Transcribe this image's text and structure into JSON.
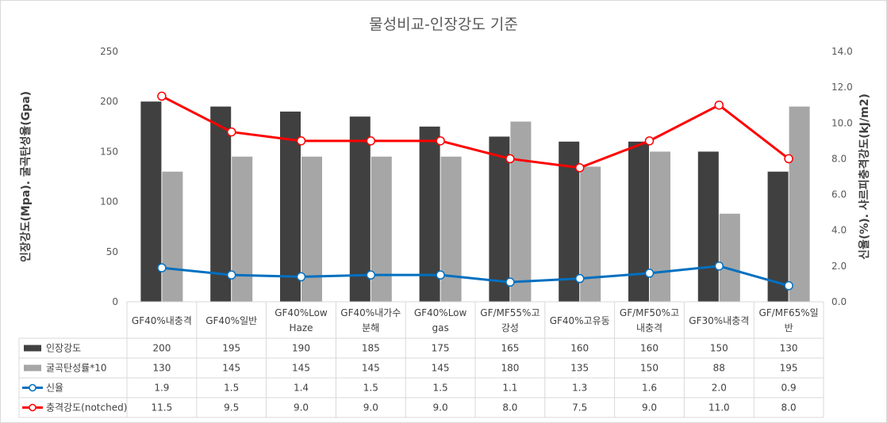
{
  "chart_data": {
    "type": "bar",
    "title": "물성비교-인장강도 기준",
    "ylabel_left": "인장강도(Mpa). 굴곡탄성율(Gpa)",
    "ylabel_right": "신율(%). 샤르피충격강도(kJ/m2)",
    "ylim_left": [
      0,
      250
    ],
    "yticks_left": [
      "0",
      "50",
      "100",
      "150",
      "200",
      "250"
    ],
    "ylim_right": [
      0,
      14
    ],
    "yticks_right": [
      "0.0",
      "2.0",
      "4.0",
      "6.0",
      "8.0",
      "10.0",
      "12.0",
      "14.0"
    ],
    "categories": [
      [
        "GF40%내충격"
      ],
      [
        "GF40%일반"
      ],
      [
        "GF40%Low",
        "Haze"
      ],
      [
        "GF40%내가수",
        "분해"
      ],
      [
        "GF40%Low",
        "gas"
      ],
      [
        "GF/MF55%고",
        "강성"
      ],
      [
        "GF40%고유동"
      ],
      [
        "GF/MF50%고",
        "내충격"
      ],
      [
        "GF30%내충격"
      ],
      [
        "GF/MF65%일",
        "반"
      ]
    ],
    "series": [
      {
        "name": "인장강도",
        "type": "bar",
        "axis": "left",
        "color": "#404040",
        "values": [
          200,
          195,
          190,
          185,
          175,
          165,
          160,
          160,
          150,
          130
        ],
        "labels": [
          "200",
          "195",
          "190",
          "185",
          "175",
          "165",
          "160",
          "160",
          "150",
          "130"
        ]
      },
      {
        "name": "굴곡탄성률*10",
        "type": "bar",
        "axis": "left",
        "color": "#a6a6a6",
        "values": [
          130,
          145,
          145,
          145,
          145,
          180,
          135,
          150,
          88,
          195
        ],
        "labels": [
          "130",
          "145",
          "145",
          "145",
          "145",
          "180",
          "135",
          "150",
          "88",
          "195"
        ]
      },
      {
        "name": "신율",
        "type": "line",
        "axis": "right",
        "color": "#0070c0",
        "values": [
          1.9,
          1.5,
          1.4,
          1.5,
          1.5,
          1.1,
          1.3,
          1.6,
          2.0,
          0.9
        ],
        "labels": [
          "1.9",
          "1.5",
          "1.4",
          "1.5",
          "1.5",
          "1.1",
          "1.3",
          "1.6",
          "2.0",
          "0.9"
        ]
      },
      {
        "name": "충격강도(notched)",
        "type": "line",
        "axis": "right",
        "color": "#ff0000",
        "values": [
          11.5,
          9.5,
          9.0,
          9.0,
          9.0,
          8.0,
          7.5,
          9.0,
          11.0,
          8.0
        ],
        "labels": [
          "11.5",
          "9.5",
          "9.0",
          "9.0",
          "9.0",
          "8.0",
          "7.5",
          "9.0",
          "11.0",
          "8.0"
        ]
      }
    ],
    "legend": "data-table",
    "grid": false
  }
}
